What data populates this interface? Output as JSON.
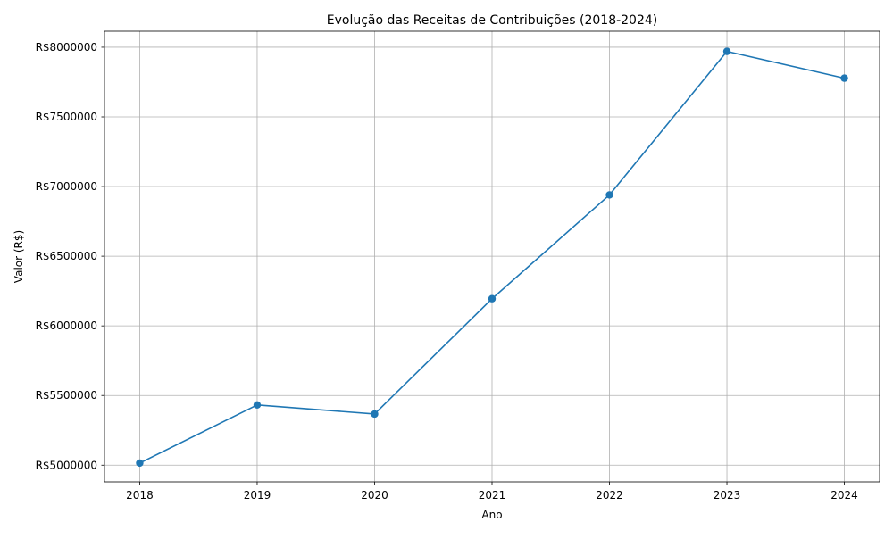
{
  "chart_data": {
    "type": "line",
    "title": "Evolução das Receitas de Contribuições (2018-2024)",
    "xlabel": "Ano",
    "ylabel": "Valor (R$)",
    "x": [
      2018,
      2019,
      2020,
      2021,
      2022,
      2023,
      2024
    ],
    "series": [
      {
        "values": [
          5015000,
          5432000,
          5367000,
          6195000,
          6940000,
          7970000,
          7778000
        ],
        "color": "#1f77b4",
        "marker": "circle"
      }
    ],
    "ylim": [
      4880000,
      8115000
    ],
    "xlim": [
      2017.7,
      2024.3
    ],
    "y_ticks": [
      5000000,
      5500000,
      6000000,
      6500000,
      7000000,
      7500000,
      8000000
    ],
    "y_tick_labels": [
      "R$5000000",
      "R$5500000",
      "R$6000000",
      "R$6500000",
      "R$7000000",
      "R$7500000",
      "R$8000000"
    ],
    "x_tick_labels": [
      "2018",
      "2019",
      "2020",
      "2021",
      "2022",
      "2023",
      "2024"
    ],
    "grid": true,
    "grid_color": "#b0b0b0"
  }
}
